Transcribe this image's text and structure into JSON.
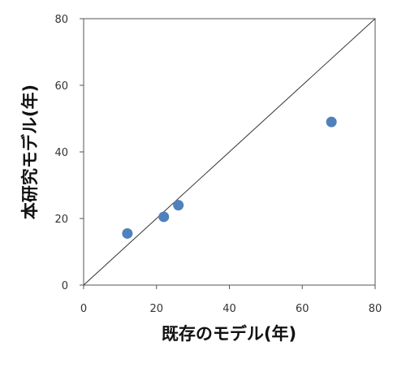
{
  "chart_data": {
    "type": "scatter",
    "title": "",
    "xlabel": "既存のモデル(年)",
    "ylabel": "本研究モデル(年)",
    "xlim": [
      0,
      80
    ],
    "ylim": [
      0,
      80
    ],
    "xticks": [
      "0",
      "20",
      "40",
      "60",
      "80"
    ],
    "yticks": [
      "0",
      "20",
      "40",
      "60",
      "80"
    ],
    "grid": false,
    "legend": "none",
    "reference_line": {
      "x": [
        0,
        80
      ],
      "y": [
        0,
        80
      ],
      "color": "#333333"
    },
    "series": [
      {
        "color": "#4f81bd",
        "points": [
          {
            "x": 12,
            "y": 15.5
          },
          {
            "x": 22,
            "y": 20.5
          },
          {
            "x": 26,
            "y": 24
          },
          {
            "x": 68,
            "y": 49
          }
        ]
      }
    ]
  }
}
